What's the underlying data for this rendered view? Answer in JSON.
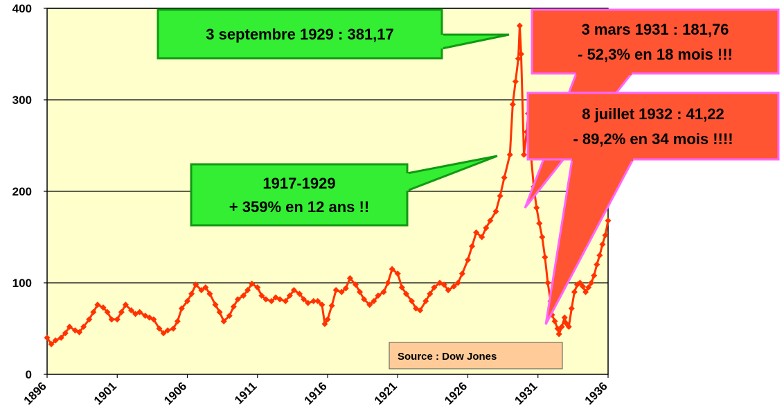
{
  "chart_data": {
    "type": "line",
    "title": "",
    "xlabel": "",
    "ylabel": "",
    "xlim": [
      1896,
      1936
    ],
    "ylim": [
      0,
      400
    ],
    "x_ticks": [
      "1896",
      "1901",
      "1906",
      "1911",
      "1916",
      "1921",
      "1926",
      "1931",
      "1936"
    ],
    "y_ticks": [
      "0",
      "100",
      "200",
      "300",
      "400"
    ],
    "grid": "horizontal",
    "series": [
      {
        "name": "",
        "color": "#ff3300",
        "points": [
          [
            1896.0,
            40
          ],
          [
            1896.3,
            33
          ],
          [
            1896.6,
            37
          ],
          [
            1897.0,
            40
          ],
          [
            1897.3,
            45
          ],
          [
            1897.6,
            52
          ],
          [
            1898.0,
            48
          ],
          [
            1898.3,
            46
          ],
          [
            1898.6,
            52
          ],
          [
            1899.0,
            60
          ],
          [
            1899.3,
            68
          ],
          [
            1899.6,
            76
          ],
          [
            1900.0,
            73
          ],
          [
            1900.3,
            68
          ],
          [
            1900.6,
            60
          ],
          [
            1901.0,
            60
          ],
          [
            1901.3,
            68
          ],
          [
            1901.6,
            76
          ],
          [
            1902.0,
            70
          ],
          [
            1902.3,
            66
          ],
          [
            1902.6,
            68
          ],
          [
            1903.0,
            64
          ],
          [
            1903.3,
            62
          ],
          [
            1903.6,
            60
          ],
          [
            1904.0,
            50
          ],
          [
            1904.3,
            45
          ],
          [
            1904.6,
            48
          ],
          [
            1905.0,
            50
          ],
          [
            1905.3,
            58
          ],
          [
            1905.6,
            72
          ],
          [
            1906.0,
            80
          ],
          [
            1906.3,
            88
          ],
          [
            1906.6,
            98
          ],
          [
            1907.0,
            92
          ],
          [
            1907.3,
            95
          ],
          [
            1907.6,
            88
          ],
          [
            1908.0,
            76
          ],
          [
            1908.3,
            68
          ],
          [
            1908.6,
            58
          ],
          [
            1909.0,
            64
          ],
          [
            1909.3,
            74
          ],
          [
            1909.6,
            82
          ],
          [
            1910.0,
            86
          ],
          [
            1910.3,
            92
          ],
          [
            1910.6,
            99
          ],
          [
            1911.0,
            95
          ],
          [
            1911.3,
            86
          ],
          [
            1911.6,
            82
          ],
          [
            1912.0,
            80
          ],
          [
            1912.3,
            84
          ],
          [
            1912.6,
            82
          ],
          [
            1913.0,
            80
          ],
          [
            1913.3,
            86
          ],
          [
            1913.6,
            92
          ],
          [
            1914.0,
            88
          ],
          [
            1914.3,
            82
          ],
          [
            1914.6,
            78
          ],
          [
            1915.0,
            80
          ],
          [
            1915.3,
            80
          ],
          [
            1915.6,
            76
          ],
          [
            1915.8,
            55
          ],
          [
            1916.0,
            60
          ],
          [
            1916.3,
            75
          ],
          [
            1916.6,
            92
          ],
          [
            1917.0,
            90
          ],
          [
            1917.3,
            94
          ],
          [
            1917.6,
            105
          ],
          [
            1918.0,
            98
          ],
          [
            1918.3,
            90
          ],
          [
            1918.6,
            82
          ],
          [
            1919.0,
            76
          ],
          [
            1919.3,
            80
          ],
          [
            1919.6,
            86
          ],
          [
            1920.0,
            90
          ],
          [
            1920.3,
            100
          ],
          [
            1920.6,
            115
          ],
          [
            1921.0,
            110
          ],
          [
            1921.3,
            95
          ],
          [
            1921.6,
            88
          ],
          [
            1922.0,
            80
          ],
          [
            1922.3,
            72
          ],
          [
            1922.6,
            70
          ],
          [
            1923.0,
            80
          ],
          [
            1923.3,
            88
          ],
          [
            1923.6,
            95
          ],
          [
            1924.0,
            100
          ],
          [
            1924.3,
            98
          ],
          [
            1924.6,
            92
          ],
          [
            1925.0,
            96
          ],
          [
            1925.3,
            100
          ],
          [
            1925.6,
            110
          ],
          [
            1926.0,
            125
          ],
          [
            1926.3,
            140
          ],
          [
            1926.6,
            155
          ],
          [
            1927.0,
            150
          ],
          [
            1927.3,
            160
          ],
          [
            1927.6,
            168
          ],
          [
            1928.0,
            178
          ],
          [
            1928.3,
            195
          ],
          [
            1928.6,
            215
          ],
          [
            1929.0,
            240
          ],
          [
            1929.2,
            295
          ],
          [
            1929.4,
            320
          ],
          [
            1929.6,
            345
          ],
          [
            1929.7,
            381
          ],
          [
            1929.8,
            350
          ],
          [
            1930.0,
            240
          ],
          [
            1930.2,
            265
          ],
          [
            1930.3,
            285
          ],
          [
            1930.5,
            240
          ],
          [
            1930.7,
            205
          ],
          [
            1930.9,
            182
          ],
          [
            1931.1,
            165
          ],
          [
            1931.3,
            150
          ],
          [
            1931.5,
            128
          ],
          [
            1931.7,
            100
          ],
          [
            1931.9,
            80
          ],
          [
            1932.0,
            65
          ],
          [
            1932.2,
            58
          ],
          [
            1932.4,
            50
          ],
          [
            1932.5,
            44
          ],
          [
            1932.7,
            52
          ],
          [
            1932.9,
            62
          ],
          [
            1933.0,
            56
          ],
          [
            1933.2,
            52
          ],
          [
            1933.4,
            72
          ],
          [
            1933.6,
            90
          ],
          [
            1933.8,
            98
          ],
          [
            1934.0,
            100
          ],
          [
            1934.2,
            96
          ],
          [
            1934.4,
            90
          ],
          [
            1934.6,
            95
          ],
          [
            1934.8,
            100
          ],
          [
            1935.0,
            108
          ],
          [
            1935.2,
            120
          ],
          [
            1935.4,
            130
          ],
          [
            1935.6,
            142
          ],
          [
            1935.8,
            152
          ],
          [
            1936.0,
            168
          ]
        ]
      }
    ],
    "annotations": [
      {
        "lines": [
          "3 septembre 1929 : 381,17"
        ],
        "fill": "#33ee33",
        "border": "#119911"
      },
      {
        "lines": [
          "1917-1929",
          "+ 359% en 12 ans !!"
        ],
        "fill": "#33ee33",
        "border": "#119911"
      },
      {
        "lines": [
          "3 mars 1931 : 181,76",
          "- 52,3% en 18 mois !!!"
        ],
        "fill": "#ff5533",
        "border": "#ff66ff"
      },
      {
        "lines": [
          "8 juillet 1932 : 41,22",
          "- 89,2% en 34 mois !!!!"
        ],
        "fill": "#ff5533",
        "border": "#ff66ff"
      }
    ],
    "source_label": "Source : Dow Jones",
    "colors": {
      "plot_background": "#ffffcc",
      "line": "#ff3300",
      "gridline": "#000000",
      "source_box": "#ffcc99"
    }
  }
}
